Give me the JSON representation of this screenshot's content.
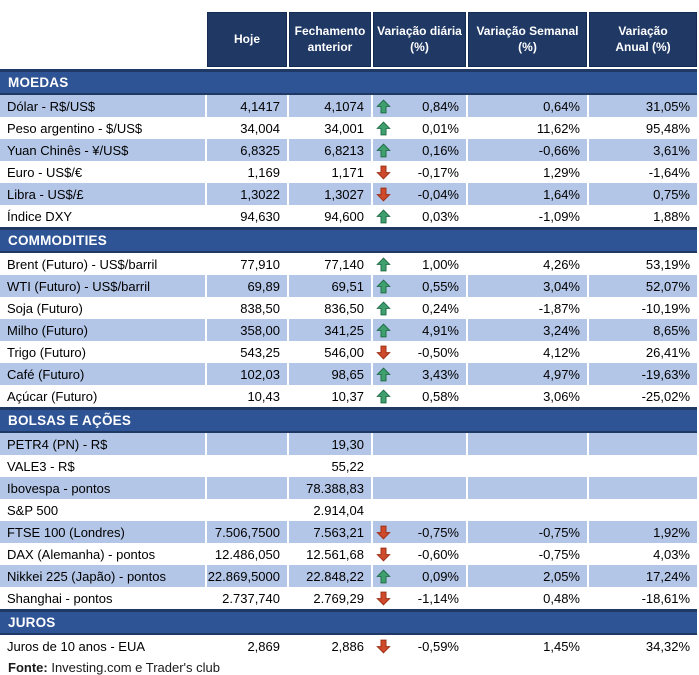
{
  "header": {
    "labels": [
      "Hoje",
      "Fechamento\nanterior",
      "Variação diária\n(%)",
      "Variação Semanal\n(%)",
      "Variação\nAnual (%)"
    ]
  },
  "footer": {
    "label": "Fonte:",
    "text": " Investing.com e Trader's club"
  },
  "colors": {
    "header_bg": "#1F3864",
    "section_bg": "#2F5496",
    "band": "#B4C6E7",
    "up_arrow": "#3FA06E",
    "up_arrow_border": "#1E6B47",
    "down_arrow": "#CE4A2B",
    "down_arrow_border": "#9C3018",
    "header_text": "#FFFFFF",
    "body_text": "#000000"
  },
  "chart_data": {
    "type": "table",
    "columns": [
      "",
      "Hoje",
      "Fechamento anterior",
      "Variação diária (%)",
      "Variação Semanal (%)",
      "Variação Anual (%)"
    ],
    "sections": [
      {
        "title": "MOEDAS",
        "first_row_shaded": true,
        "rows": [
          {
            "label": "Dólar - R$/US$",
            "hoje": "4,1417",
            "fechamento": "4,1074",
            "arrow": "up",
            "diaria": "0,84%",
            "semanal": "0,64%",
            "anual": "31,05%"
          },
          {
            "label": "Peso argentino - $/US$",
            "hoje": "34,004",
            "fechamento": "34,001",
            "arrow": "up",
            "diaria": "0,01%",
            "semanal": "11,62%",
            "anual": "95,48%"
          },
          {
            "label": "Yuan Chinês - ¥/US$",
            "hoje": "6,8325",
            "fechamento": "6,8213",
            "arrow": "up",
            "diaria": "0,16%",
            "semanal": "-0,66%",
            "anual": "3,61%"
          },
          {
            "label": "Euro - US$/€",
            "hoje": "1,169",
            "fechamento": "1,171",
            "arrow": "down",
            "diaria": "-0,17%",
            "semanal": "1,29%",
            "anual": "-1,64%"
          },
          {
            "label": "Libra - US$/£",
            "hoje": "1,3022",
            "fechamento": "1,3027",
            "arrow": "down",
            "diaria": "-0,04%",
            "semanal": "1,64%",
            "anual": "0,75%"
          },
          {
            "label": "Índice DXY",
            "hoje": "94,630",
            "fechamento": "94,600",
            "arrow": "up",
            "diaria": "0,03%",
            "semanal": "-1,09%",
            "anual": "1,88%"
          }
        ]
      },
      {
        "title": "COMMODITIES",
        "first_row_shaded": false,
        "rows": [
          {
            "label": "Brent (Futuro) - US$/barril",
            "hoje": "77,910",
            "fechamento": "77,140",
            "arrow": "up",
            "diaria": "1,00%",
            "semanal": "4,26%",
            "anual": "53,19%"
          },
          {
            "label": "WTI (Futuro) - US$/barril",
            "hoje": "69,89",
            "fechamento": "69,51",
            "arrow": "up",
            "diaria": "0,55%",
            "semanal": "3,04%",
            "anual": "52,07%"
          },
          {
            "label": "Soja (Futuro)",
            "hoje": "838,50",
            "fechamento": "836,50",
            "arrow": "up",
            "diaria": "0,24%",
            "semanal": "-1,87%",
            "anual": "-10,19%"
          },
          {
            "label": "Milho (Futuro)",
            "hoje": "358,00",
            "fechamento": "341,25",
            "arrow": "up",
            "diaria": "4,91%",
            "semanal": "3,24%",
            "anual": "8,65%"
          },
          {
            "label": "Trigo (Futuro)",
            "hoje": "543,25",
            "fechamento": "546,00",
            "arrow": "down",
            "diaria": "-0,50%",
            "semanal": "4,12%",
            "anual": "26,41%"
          },
          {
            "label": "Café (Futuro)",
            "hoje": "102,03",
            "fechamento": "98,65",
            "arrow": "up",
            "diaria": "3,43%",
            "semanal": "4,97%",
            "anual": "-19,63%"
          },
          {
            "label": "Açúcar (Futuro)",
            "hoje": "10,43",
            "fechamento": "10,37",
            "arrow": "up",
            "diaria": "0,58%",
            "semanal": "3,06%",
            "anual": "-25,02%"
          }
        ]
      },
      {
        "title": "BOLSAS E AÇÕES",
        "first_row_shaded": true,
        "rows": [
          {
            "label": "PETR4 (PN) - R$",
            "hoje": "",
            "fechamento": "19,30",
            "arrow": "none",
            "diaria": "",
            "semanal": "",
            "anual": ""
          },
          {
            "label": "VALE3 - R$",
            "hoje": "",
            "fechamento": "55,22",
            "arrow": "none",
            "diaria": "",
            "semanal": "",
            "anual": ""
          },
          {
            "label": "Ibovespa - pontos",
            "hoje": "",
            "fechamento": "78.388,83",
            "arrow": "none",
            "diaria": "",
            "semanal": "",
            "anual": ""
          },
          {
            "label": "S&P 500",
            "hoje": "",
            "fechamento": "2.914,04",
            "arrow": "none",
            "diaria": "",
            "semanal": "",
            "anual": ""
          },
          {
            "label": "FTSE 100 (Londres)",
            "hoje": "7.506,7500",
            "fechamento": "7.563,21",
            "arrow": "down",
            "diaria": "-0,75%",
            "semanal": "-0,75%",
            "anual": "1,92%"
          },
          {
            "label": "DAX (Alemanha) - pontos",
            "hoje": "12.486,050",
            "fechamento": "12.561,68",
            "arrow": "down",
            "diaria": "-0,60%",
            "semanal": "-0,75%",
            "anual": "4,03%"
          },
          {
            "label": "Nikkei 225 (Japão) - pontos",
            "hoje": "22.869,5000",
            "fechamento": "22.848,22",
            "arrow": "up",
            "diaria": "0,09%",
            "semanal": "2,05%",
            "anual": "17,24%"
          },
          {
            "label": "Shanghai - pontos",
            "hoje": "2.737,740",
            "fechamento": "2.769,29",
            "arrow": "down",
            "diaria": "-1,14%",
            "semanal": "0,48%",
            "anual": "-18,61%"
          }
        ]
      },
      {
        "title": "JUROS",
        "first_row_shaded": false,
        "rows": [
          {
            "label": "Juros de 10 anos - EUA",
            "hoje": "2,869",
            "fechamento": "2,886",
            "arrow": "down",
            "diaria": "-0,59%",
            "semanal": "1,45%",
            "anual": "34,32%"
          }
        ]
      }
    ]
  }
}
